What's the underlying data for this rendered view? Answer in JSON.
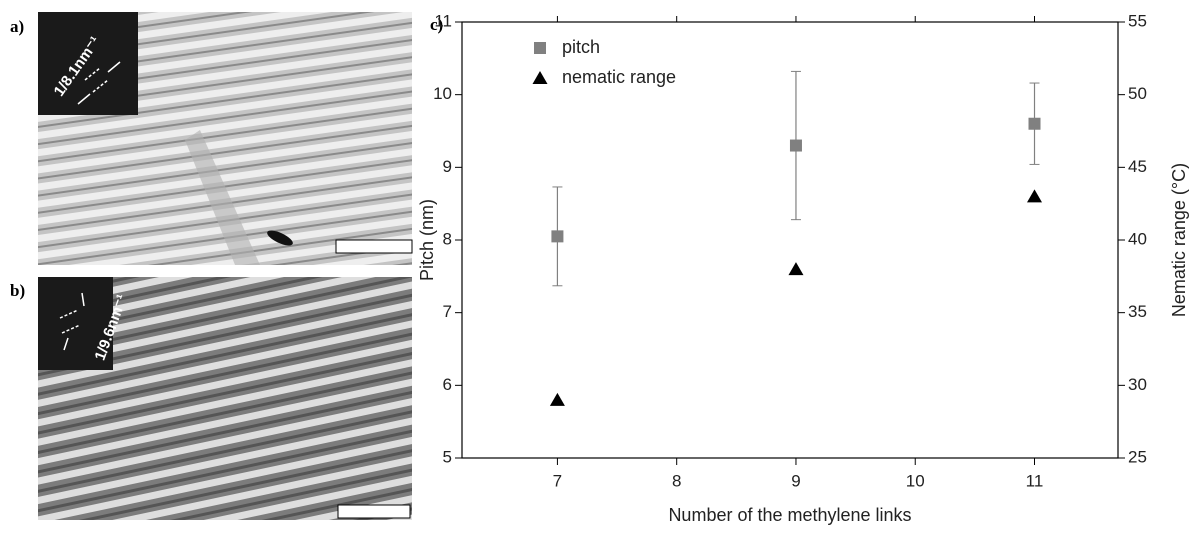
{
  "panels": [
    {
      "label": "a)",
      "fft_label": "1/8.1nm⁻¹"
    },
    {
      "label": "b)",
      "fft_label": "1/9.6nm⁻¹"
    }
  ],
  "chart_data": {
    "type": "scatter",
    "panel_label": "c)",
    "x_label": "Number of the methylene links",
    "y_label": "Pitch (nm)",
    "y2_label": "Nematic range (°C)",
    "x": [
      7,
      9,
      11
    ],
    "series": [
      {
        "name": "pitch",
        "color": "#808080",
        "marker": "square",
        "values": [
          8.05,
          9.3,
          9.6
        ],
        "error": [
          0.68,
          1.02,
          0.56
        ]
      },
      {
        "name": "nematic range",
        "color": "#000000",
        "marker": "triangle",
        "axis": "y2",
        "values": [
          29,
          38,
          43
        ]
      }
    ],
    "xlim": [
      6.2,
      11.7
    ],
    "xticks": [
      7,
      8,
      9,
      10,
      11
    ],
    "ylim": [
      5,
      11
    ],
    "yticks": [
      5,
      6,
      7,
      8,
      9,
      10,
      11
    ],
    "y2lim": [
      25,
      55
    ],
    "y2ticks": [
      25,
      30,
      35,
      40,
      45,
      50,
      55
    ],
    "legend": "top-left"
  }
}
